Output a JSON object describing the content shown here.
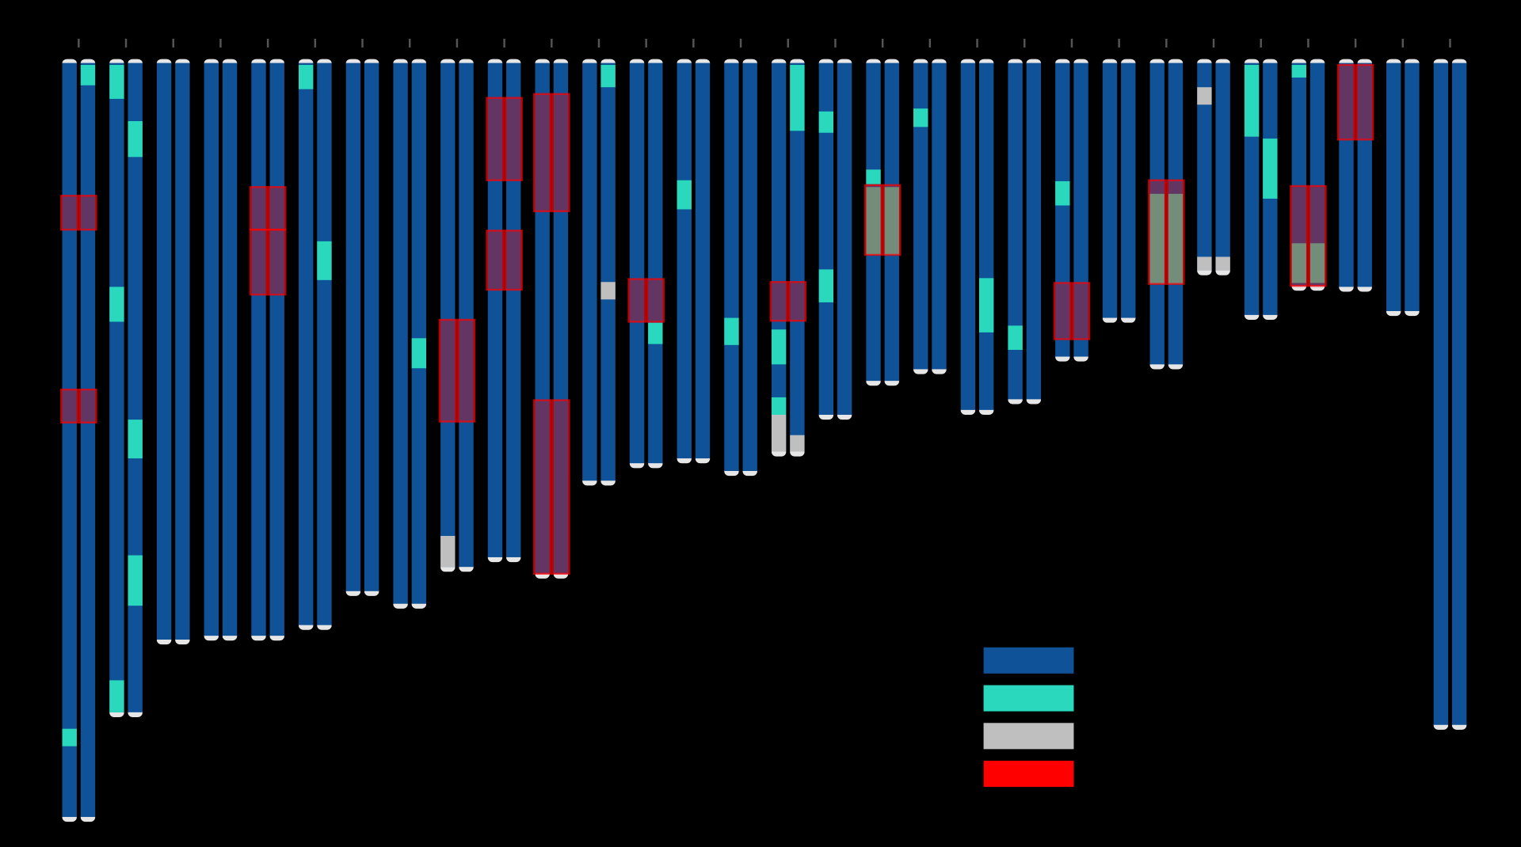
{
  "chart_data": {
    "type": "ideogram",
    "colors": {
      "base": "#0f5297",
      "teal": "#2ad9bd",
      "gray": "#bfbfbf",
      "red": "#ff0000"
    },
    "chromosomes": [
      {
        "length": 778,
        "teal": [
          [
            0,
            687,
            705
          ],
          [
            1,
            2,
            23
          ]
        ],
        "red": [
          [
            137,
            172
          ],
          [
            337,
            371
          ]
        ]
      },
      {
        "length": 670,
        "teal": [
          [
            0,
            2,
            37
          ],
          [
            0,
            231,
            267
          ],
          [
            0,
            637,
            670
          ],
          [
            1,
            60,
            97
          ],
          [
            1,
            368,
            408
          ],
          [
            1,
            508,
            560
          ]
        ]
      },
      {
        "length": 595
      },
      {
        "length": 591
      },
      {
        "length": 591,
        "red": [
          [
            128,
            172
          ],
          [
            172,
            239
          ]
        ]
      },
      {
        "length": 580,
        "teal": [
          [
            0,
            2,
            27
          ],
          [
            1,
            184,
            224
          ]
        ]
      },
      {
        "length": 545
      },
      {
        "length": 558,
        "teal": [
          [
            1,
            284,
            315
          ]
        ]
      },
      {
        "length": 520,
        "red": [
          [
            265,
            370
          ]
        ],
        "gray": [
          [
            0,
            488,
            520
          ]
        ]
      },
      {
        "length": 510,
        "red": [
          [
            36,
            121
          ],
          [
            173,
            234
          ]
        ]
      },
      {
        "length": 527,
        "red": [
          [
            32,
            153
          ],
          [
            348,
            527
          ]
        ]
      },
      {
        "length": 431,
        "teal": [
          [
            1,
            2,
            25
          ]
        ],
        "gray": [
          [
            1,
            226,
            244
          ]
        ]
      },
      {
        "length": 413,
        "red": [
          [
            223,
            267
          ]
        ],
        "teal": [
          [
            1,
            268,
            290
          ]
        ]
      },
      {
        "length": 408,
        "teal": [
          [
            0,
            121,
            151
          ]
        ]
      },
      {
        "length": 421,
        "teal": [
          [
            0,
            263,
            291
          ]
        ]
      },
      {
        "length": 401,
        "red": [
          [
            226,
            266
          ]
        ],
        "teal": [
          [
            0,
            275,
            311
          ],
          [
            0,
            345,
            363
          ],
          [
            1,
            2,
            70
          ]
        ],
        "gray": [
          [
            0,
            363,
            401
          ],
          [
            1,
            384,
            401
          ]
        ]
      },
      {
        "length": 363,
        "teal": [
          [
            0,
            50,
            72
          ],
          [
            0,
            213,
            247
          ]
        ]
      },
      {
        "length": 328,
        "teal": [
          [
            0,
            110,
            125
          ],
          [
            0,
            128,
            198
          ],
          [
            1,
            128,
            198
          ]
        ],
        "red": [
          [
            126,
            198
          ]
        ]
      },
      {
        "length": 316,
        "teal": [
          [
            0,
            47,
            66
          ]
        ]
      },
      {
        "length": 358,
        "teal": [
          [
            1,
            222,
            278
          ]
        ]
      },
      {
        "length": 347,
        "teal": [
          [
            0,
            271,
            296
          ]
        ]
      },
      {
        "length": 303,
        "teal": [
          [
            0,
            122,
            147
          ]
        ],
        "red": [
          [
            227,
            285
          ]
        ]
      },
      {
        "length": 263
      },
      {
        "length": 311,
        "teal": [
          [
            0,
            135,
            228
          ],
          [
            1,
            135,
            228
          ]
        ],
        "red": [
          [
            121,
            228
          ]
        ]
      },
      {
        "length": 214,
        "gray": [
          [
            0,
            25,
            43
          ],
          [
            0,
            200,
            214
          ],
          [
            1,
            200,
            214
          ]
        ]
      },
      {
        "length": 260,
        "teal": [
          [
            0,
            2,
            76
          ],
          [
            1,
            78,
            140
          ]
        ]
      },
      {
        "length": 230,
        "teal": [
          [
            0,
            2,
            15
          ],
          [
            0,
            186,
            227
          ],
          [
            1,
            186,
            227
          ]
        ],
        "red": [
          [
            127,
            230
          ]
        ]
      },
      {
        "length": 231,
        "red": [
          [
            2,
            79
          ]
        ]
      },
      {
        "length": 256
      },
      {
        "length": 683
      }
    ]
  }
}
